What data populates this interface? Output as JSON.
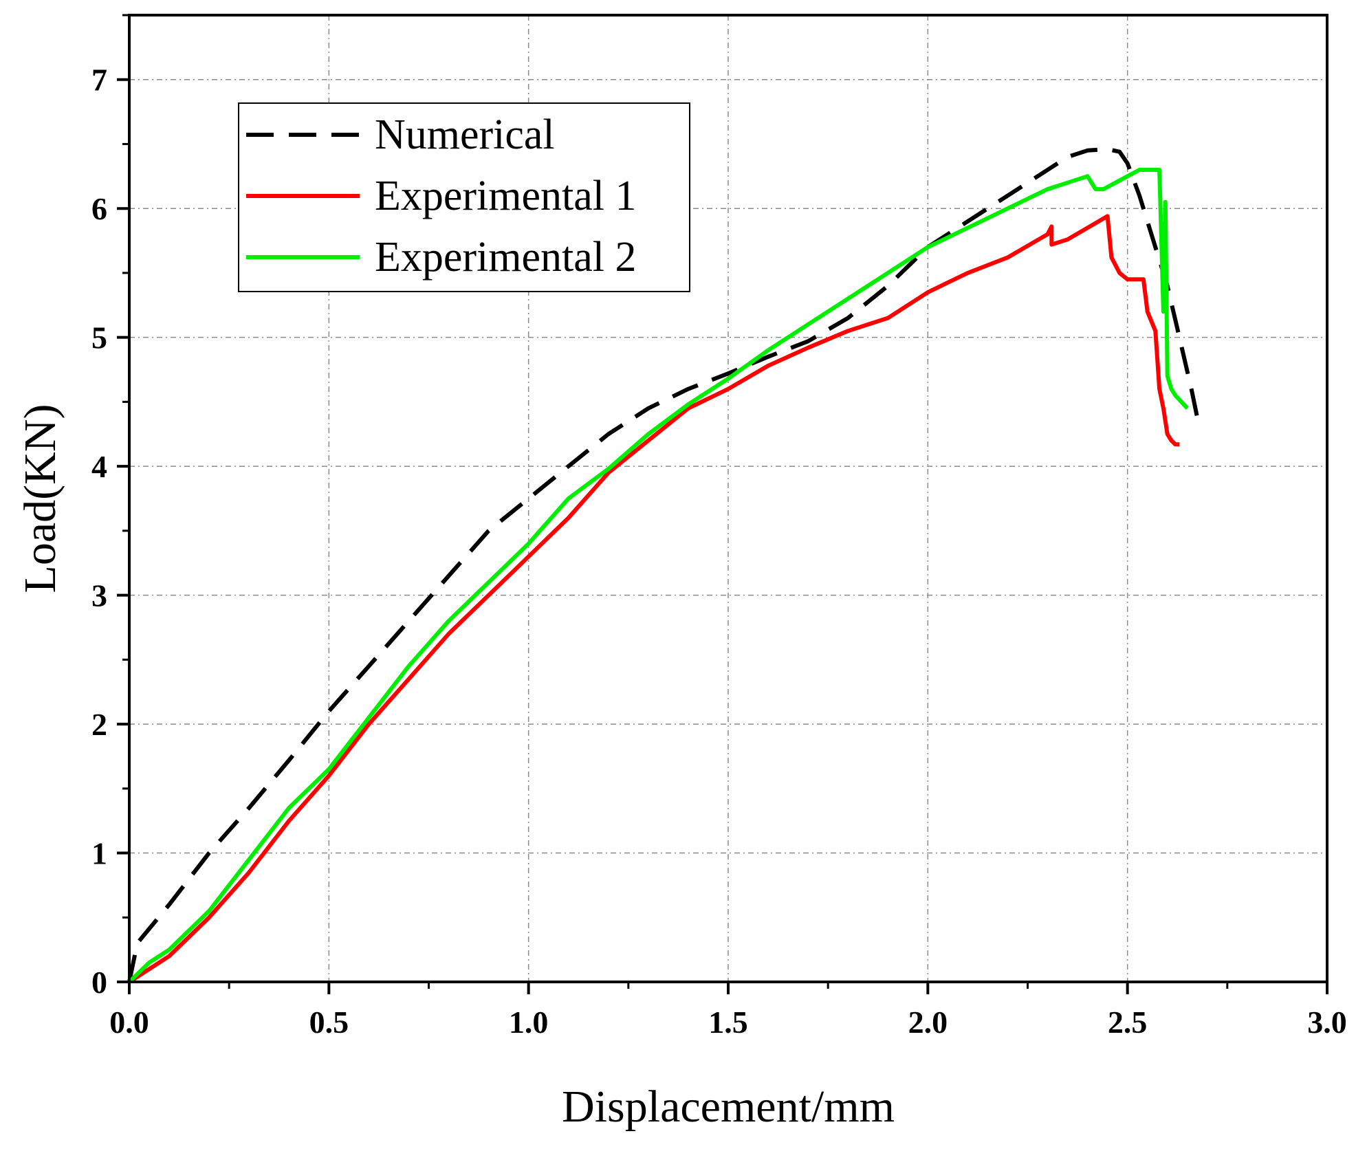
{
  "chart_data": {
    "type": "line",
    "title": "",
    "xlabel": "Displacement/mm",
    "ylabel": "Load(KN)",
    "xlim": [
      0,
      3.0
    ],
    "ylim": [
      0,
      7.5
    ],
    "xticks": [
      0.0,
      0.5,
      1.0,
      1.5,
      2.0,
      2.5,
      3.0
    ],
    "xtick_labels": [
      "0.0",
      "0.5",
      "1.0",
      "1.5",
      "2.0",
      "2.5",
      "3.0"
    ],
    "yticks": [
      0,
      1,
      2,
      3,
      4,
      5,
      6,
      7
    ],
    "ytick_labels": [
      "0",
      "1",
      "2",
      "3",
      "4",
      "5",
      "6",
      "7"
    ],
    "grid": true,
    "legend_position": "top-left",
    "series": [
      {
        "name": "Numerical",
        "color": "#000000",
        "style": "dashed",
        "x": [
          0.0,
          0.02,
          0.1,
          0.2,
          0.3,
          0.4,
          0.5,
          0.6,
          0.7,
          0.8,
          0.9,
          1.0,
          1.1,
          1.2,
          1.3,
          1.4,
          1.5,
          1.6,
          1.7,
          1.8,
          1.9,
          2.0,
          2.1,
          2.2,
          2.3,
          2.35,
          2.4,
          2.45,
          2.48,
          2.5,
          2.53,
          2.56,
          2.6,
          2.63,
          2.66,
          2.68
        ],
        "y": [
          0.0,
          0.3,
          0.6,
          1.0,
          1.35,
          1.72,
          2.1,
          2.45,
          2.8,
          3.15,
          3.5,
          3.75,
          4.0,
          4.25,
          4.45,
          4.6,
          4.72,
          4.85,
          4.97,
          5.15,
          5.4,
          5.7,
          5.9,
          6.1,
          6.3,
          6.4,
          6.45,
          6.46,
          6.44,
          6.35,
          6.1,
          5.8,
          5.4,
          5.0,
          4.6,
          4.3
        ]
      },
      {
        "name": "Experimental 1",
        "color": "#ff0000",
        "style": "solid",
        "x": [
          0.0,
          0.05,
          0.1,
          0.2,
          0.3,
          0.4,
          0.5,
          0.6,
          0.7,
          0.8,
          0.9,
          1.0,
          1.1,
          1.2,
          1.3,
          1.4,
          1.5,
          1.6,
          1.7,
          1.8,
          1.9,
          2.0,
          2.1,
          2.2,
          2.3,
          2.31,
          2.31,
          2.35,
          2.4,
          2.45,
          2.46,
          2.48,
          2.5,
          2.53,
          2.54,
          2.55,
          2.57,
          2.58,
          2.59,
          2.6,
          2.61,
          2.62,
          2.63
        ],
        "y": [
          0.0,
          0.1,
          0.2,
          0.5,
          0.85,
          1.25,
          1.6,
          2.0,
          2.35,
          2.7,
          3.0,
          3.3,
          3.6,
          3.95,
          4.2,
          4.45,
          4.6,
          4.78,
          4.92,
          5.05,
          5.15,
          5.35,
          5.5,
          5.62,
          5.8,
          5.86,
          5.72,
          5.76,
          5.85,
          5.94,
          5.62,
          5.5,
          5.45,
          5.45,
          5.45,
          5.2,
          5.05,
          4.6,
          4.45,
          4.25,
          4.2,
          4.17,
          4.17
        ]
      },
      {
        "name": "Experimental 2",
        "color": "#00ee00",
        "style": "solid",
        "x": [
          0.0,
          0.05,
          0.1,
          0.2,
          0.3,
          0.4,
          0.5,
          0.6,
          0.7,
          0.8,
          0.9,
          1.0,
          1.1,
          1.2,
          1.3,
          1.4,
          1.5,
          1.6,
          1.7,
          1.8,
          1.9,
          2.0,
          2.1,
          2.2,
          2.3,
          2.35,
          2.4,
          2.42,
          2.44,
          2.47,
          2.5,
          2.53,
          2.56,
          2.58,
          2.59,
          2.595,
          2.6,
          2.61,
          2.62,
          2.635,
          2.65
        ],
        "y": [
          0.0,
          0.15,
          0.25,
          0.55,
          0.95,
          1.35,
          1.65,
          2.05,
          2.45,
          2.8,
          3.1,
          3.4,
          3.75,
          3.98,
          4.25,
          4.48,
          4.68,
          4.9,
          5.1,
          5.3,
          5.5,
          5.7,
          5.85,
          6.0,
          6.15,
          6.2,
          6.25,
          6.15,
          6.15,
          6.2,
          6.25,
          6.3,
          6.3,
          6.3,
          5.2,
          6.05,
          4.7,
          4.6,
          4.55,
          4.5,
          4.45
        ]
      }
    ]
  }
}
